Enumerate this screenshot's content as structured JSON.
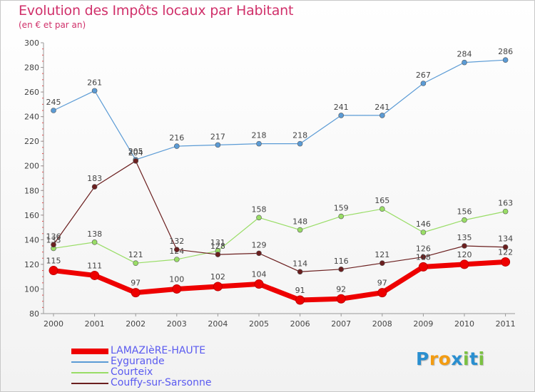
{
  "title": "Evolution des Impôts locaux par Habitant",
  "subtitle": "(en € et par an)",
  "logo": {
    "letters": [
      "P",
      "r",
      "o",
      "x",
      "i",
      "t",
      "i"
    ],
    "colors": [
      "#2a8fd0",
      "#f39c12",
      "#f39c12",
      "#2a8fd0",
      "#7bc142",
      "#2a8fd0",
      "#7bc142"
    ]
  },
  "chart_data": {
    "type": "line",
    "x": [
      "2000",
      "2001",
      "2002",
      "2003",
      "2004",
      "2005",
      "2006",
      "2007",
      "2008",
      "2009",
      "2010",
      "2011"
    ],
    "ylim": [
      80,
      300
    ],
    "yticks": [
      80,
      100,
      120,
      140,
      160,
      180,
      200,
      220,
      240,
      260,
      280,
      300
    ],
    "grid": false,
    "series": [
      {
        "name": "LAMAZIèRE-HAUTE",
        "color": "#ee0000",
        "values": [
          115,
          111,
          97,
          100,
          102,
          104,
          91,
          92,
          97,
          118,
          120,
          122
        ],
        "labels": [
          "115",
          "111",
          "97",
          "100",
          "102",
          "104",
          "91",
          "92",
          "97",
          "118",
          "120",
          "122"
        ]
      },
      {
        "name": "Eygurande",
        "color": "#5b9bd5",
        "values": [
          245,
          261,
          205,
          216,
          217,
          218,
          218,
          241,
          241,
          267,
          284,
          286
        ],
        "labels": [
          "245",
          "261",
          "205",
          "216",
          "217",
          "218",
          "218",
          "241",
          "241",
          "267",
          "284",
          "286"
        ]
      },
      {
        "name": "Courteix",
        "color": "#99dd66",
        "values": [
          133,
          138,
          121,
          124,
          131,
          158,
          148,
          159,
          165,
          146,
          156,
          163
        ],
        "labels": [
          "133",
          "138",
          "121",
          "124",
          "131",
          "158",
          "148",
          "159",
          "165",
          "146",
          "156",
          "163"
        ]
      },
      {
        "name": "Couffy-sur-Sarsonne",
        "color": "#6b1f1f",
        "values": [
          136,
          183,
          204,
          132,
          128,
          129,
          114,
          116,
          121,
          126,
          135,
          134
        ],
        "labels": [
          "136",
          "183",
          "204",
          "132",
          "128",
          "129",
          "114",
          "116",
          "121",
          "126",
          "135",
          "134"
        ]
      }
    ]
  }
}
